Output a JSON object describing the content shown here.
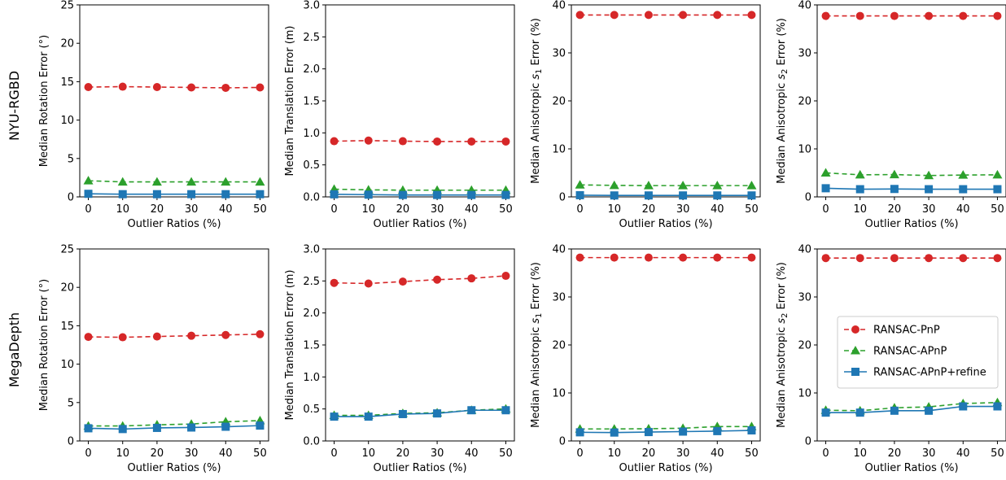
{
  "row_labels": [
    "NYU-RGBD",
    "MegaDepth"
  ],
  "legend": {
    "placement": "right",
    "entries": [
      "RANSAC-PnP",
      "RANSAC-APnP",
      "RANSAC-APnP+refine"
    ]
  },
  "colors": {
    "pnp": "#d62728",
    "apnp": "#2ca02c",
    "refine": "#1f77b4"
  },
  "chart_data": [
    {
      "type": "line",
      "row": "NYU-RGBD",
      "x": [
        0,
        10,
        20,
        30,
        40,
        50
      ],
      "xlabel": "Outlier Ratios (%)",
      "ylabel": "Median Rotation Error (°)",
      "ylim": [
        0,
        25
      ],
      "yticks": [
        0,
        5,
        10,
        15,
        20,
        25
      ],
      "ytick_labels": [
        "0",
        "5",
        "10",
        "15",
        "20",
        "25"
      ],
      "series": [
        {
          "name": "RANSAC-PnP",
          "values": [
            14.3,
            14.35,
            14.3,
            14.25,
            14.2,
            14.25
          ]
        },
        {
          "name": "RANSAC-APnP",
          "values": [
            2.1,
            1.95,
            1.95,
            1.95,
            1.95,
            1.95
          ]
        },
        {
          "name": "RANSAC-APnP+refine",
          "values": [
            0.4,
            0.35,
            0.35,
            0.35,
            0.35,
            0.35
          ]
        }
      ]
    },
    {
      "type": "line",
      "row": "NYU-RGBD",
      "x": [
        0,
        10,
        20,
        30,
        40,
        50
      ],
      "xlabel": "Outlier Ratios (%)",
      "ylabel": "Median Translation Error (m)",
      "ylim": [
        0,
        3
      ],
      "yticks": [
        0,
        0.5,
        1,
        1.5,
        2,
        2.5,
        3
      ],
      "ytick_labels": [
        "0.0",
        "0.5",
        "1.0",
        "1.5",
        "2.0",
        "2.5",
        "3.0"
      ],
      "series": [
        {
          "name": "RANSAC-PnP",
          "values": [
            0.87,
            0.88,
            0.87,
            0.865,
            0.865,
            0.865
          ]
        },
        {
          "name": "RANSAC-APnP",
          "values": [
            0.12,
            0.11,
            0.105,
            0.105,
            0.105,
            0.105
          ]
        },
        {
          "name": "RANSAC-APnP+refine",
          "values": [
            0.04,
            0.035,
            0.03,
            0.03,
            0.03,
            0.03
          ]
        }
      ]
    },
    {
      "type": "line",
      "row": "NYU-RGBD",
      "x": [
        0,
        10,
        20,
        30,
        40,
        50
      ],
      "xlabel": "Outlier Ratios (%)",
      "ylabel": "Median Anisotropic s1 Error (%)",
      "ylabel_subscript": "1",
      "ylim": [
        0,
        40
      ],
      "yticks": [
        0,
        10,
        20,
        30,
        40
      ],
      "ytick_labels": [
        "0",
        "10",
        "20",
        "30",
        "40"
      ],
      "series": [
        {
          "name": "RANSAC-PnP",
          "values": [
            37.9,
            37.9,
            37.9,
            37.9,
            37.9,
            37.9
          ]
        },
        {
          "name": "RANSAC-APnP",
          "values": [
            2.5,
            2.4,
            2.35,
            2.35,
            2.35,
            2.35
          ]
        },
        {
          "name": "RANSAC-APnP+refine",
          "values": [
            0.35,
            0.3,
            0.3,
            0.3,
            0.3,
            0.3
          ]
        }
      ]
    },
    {
      "type": "line",
      "row": "NYU-RGBD",
      "x": [
        0,
        10,
        20,
        30,
        40,
        50
      ],
      "xlabel": "Outlier Ratios (%)",
      "ylabel": "Median Anisotropic s2 Error (%)",
      "ylabel_subscript": "2",
      "ylim": [
        0,
        40
      ],
      "yticks": [
        0,
        10,
        20,
        30,
        40
      ],
      "ytick_labels": [
        "0",
        "10",
        "20",
        "30",
        "40"
      ],
      "series": [
        {
          "name": "RANSAC-PnP",
          "values": [
            37.7,
            37.7,
            37.7,
            37.7,
            37.7,
            37.7
          ]
        },
        {
          "name": "RANSAC-APnP",
          "values": [
            5.0,
            4.6,
            4.65,
            4.45,
            4.55,
            4.6
          ]
        },
        {
          "name": "RANSAC-APnP+refine",
          "values": [
            1.8,
            1.6,
            1.65,
            1.6,
            1.6,
            1.6
          ]
        }
      ]
    },
    {
      "type": "line",
      "row": "MegaDepth",
      "x": [
        0,
        10,
        20,
        30,
        40,
        50
      ],
      "xlabel": "Outlier Ratios (%)",
      "ylabel": "Median Rotation Error (°)",
      "ylim": [
        0,
        25
      ],
      "yticks": [
        0,
        5,
        10,
        15,
        20,
        25
      ],
      "ytick_labels": [
        "0",
        "5",
        "10",
        "15",
        "20",
        "25"
      ],
      "series": [
        {
          "name": "RANSAC-PnP",
          "values": [
            13.55,
            13.5,
            13.6,
            13.7,
            13.8,
            13.9
          ]
        },
        {
          "name": "RANSAC-APnP",
          "values": [
            1.95,
            1.95,
            2.1,
            2.2,
            2.5,
            2.65
          ]
        },
        {
          "name": "RANSAC-APnP+refine",
          "values": [
            1.65,
            1.55,
            1.7,
            1.75,
            1.85,
            2.0
          ]
        }
      ]
    },
    {
      "type": "line",
      "row": "MegaDepth",
      "x": [
        0,
        10,
        20,
        30,
        40,
        50
      ],
      "xlabel": "Outlier Ratios (%)",
      "ylabel": "Median Translation Error (m)",
      "ylim": [
        0,
        3
      ],
      "yticks": [
        0,
        0.5,
        1,
        1.5,
        2,
        2.5,
        3
      ],
      "ytick_labels": [
        "0.0",
        "0.5",
        "1.0",
        "1.5",
        "2.0",
        "2.5",
        "3.0"
      ],
      "series": [
        {
          "name": "RANSAC-PnP",
          "values": [
            2.47,
            2.46,
            2.49,
            2.52,
            2.54,
            2.58
          ]
        },
        {
          "name": "RANSAC-APnP",
          "values": [
            0.4,
            0.4,
            0.43,
            0.44,
            0.48,
            0.5
          ]
        },
        {
          "name": "RANSAC-APnP+refine",
          "values": [
            0.38,
            0.38,
            0.42,
            0.43,
            0.48,
            0.48
          ]
        }
      ]
    },
    {
      "type": "line",
      "row": "MegaDepth",
      "x": [
        0,
        10,
        20,
        30,
        40,
        50
      ],
      "xlabel": "Outlier Ratios (%)",
      "ylabel": "Median Anisotropic s1 Error (%)",
      "ylabel_subscript": "1",
      "ylim": [
        0,
        40
      ],
      "yticks": [
        0,
        10,
        20,
        30,
        40
      ],
      "ytick_labels": [
        "0",
        "10",
        "20",
        "30",
        "40"
      ],
      "series": [
        {
          "name": "RANSAC-PnP",
          "values": [
            38.2,
            38.2,
            38.2,
            38.2,
            38.2,
            38.2
          ]
        },
        {
          "name": "RANSAC-APnP",
          "values": [
            2.5,
            2.5,
            2.55,
            2.65,
            3.0,
            3.0
          ]
        },
        {
          "name": "RANSAC-APnP+refine",
          "values": [
            1.8,
            1.75,
            1.85,
            1.95,
            2.05,
            2.2
          ]
        }
      ]
    },
    {
      "type": "line",
      "row": "MegaDepth",
      "x": [
        0,
        10,
        20,
        30,
        40,
        50
      ],
      "xlabel": "Outlier Ratios (%)",
      "ylabel": "Median Anisotropic s2 Error (%)",
      "ylabel_subscript": "2",
      "ylim": [
        0,
        40
      ],
      "yticks": [
        0,
        10,
        20,
        30,
        40
      ],
      "ytick_labels": [
        "0",
        "10",
        "20",
        "30",
        "40"
      ],
      "series": [
        {
          "name": "RANSAC-PnP",
          "values": [
            38.1,
            38.1,
            38.1,
            38.1,
            38.1,
            38.1
          ]
        },
        {
          "name": "RANSAC-APnP",
          "values": [
            6.4,
            6.3,
            6.9,
            7.1,
            7.8,
            8.0
          ]
        },
        {
          "name": "RANSAC-APnP+refine",
          "values": [
            5.9,
            5.9,
            6.3,
            6.3,
            7.2,
            7.2
          ]
        }
      ]
    }
  ]
}
